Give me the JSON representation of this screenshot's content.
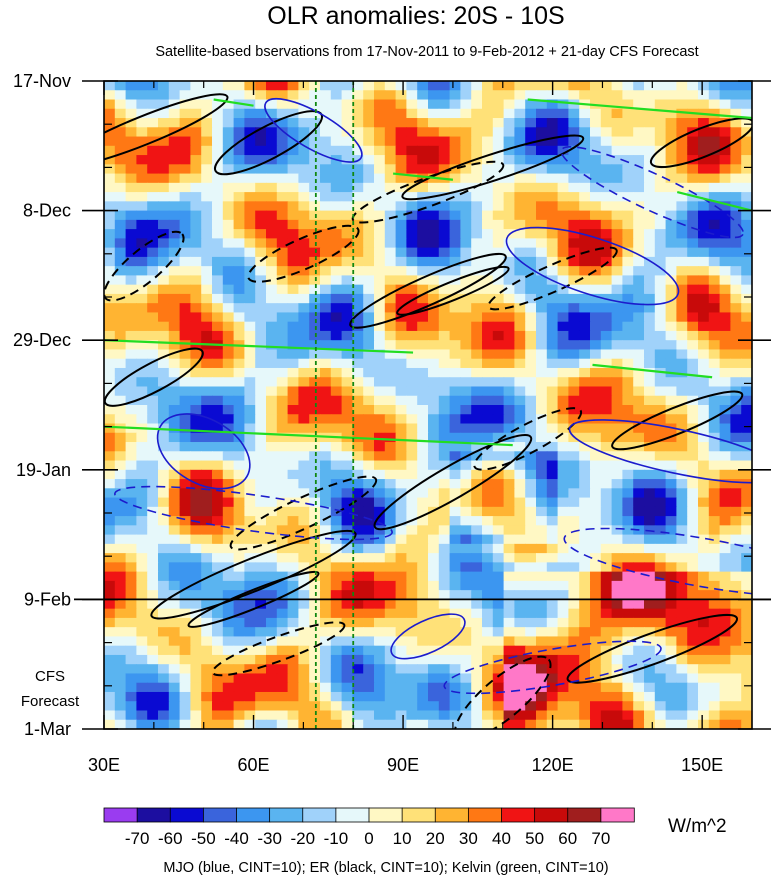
{
  "chart_data": {
    "type": "heatmap",
    "title": "OLR anomalies: 20S - 10S",
    "subtitle": "Satellite-based bservations from 17-Nov-2011 to 9-Feb-2012 + 21-day CFS Forecast",
    "xaxis": {
      "ticks": [
        30,
        60,
        90,
        120,
        150
      ],
      "tick_labels": [
        "30E",
        "60E",
        "90E",
        "120E",
        "150E"
      ],
      "range": [
        30,
        160
      ]
    },
    "yaxis": {
      "ticks": [
        "17-Nov",
        "8-Dec",
        "29-Dec",
        "19-Jan",
        "9-Feb",
        "1-Mar"
      ],
      "range_days": [
        0,
        105
      ],
      "inverted": true
    },
    "forecast_start": "9-Feb",
    "forecast_label": [
      "CFS",
      "Forecast"
    ],
    "vertical_dashed_lines_lon": [
      72.5,
      80
    ],
    "colorbar": {
      "levels": [
        "-70",
        "-60",
        "-50",
        "-40",
        "-30",
        "-20",
        "-10",
        "0",
        "10",
        "20",
        "30",
        "40",
        "50",
        "60",
        "70"
      ],
      "colors": [
        "#9a3cf0",
        "#1c0ea0",
        "#0a0ad2",
        "#3a64dc",
        "#3c96f0",
        "#5ab4f0",
        "#a0d2fa",
        "#e6f8fa",
        "#fff8c4",
        "#ffe178",
        "#ffb432",
        "#ff7814",
        "#f01414",
        "#c80a0a",
        "#a01e1e",
        "#ff78c8"
      ],
      "unit": "W/m^2"
    },
    "contours": [
      {
        "name": "MJO",
        "color": "#1c1ccc",
        "cint": 10
      },
      {
        "name": "ER",
        "color": "#000000",
        "cint": 10
      },
      {
        "name": "Kelvin",
        "color": "#22dd22",
        "cint": 10
      }
    ],
    "footer": "MJO (blue, CINT=10); ER (black, CINT=10); Kelvin (green, CINT=10)"
  }
}
